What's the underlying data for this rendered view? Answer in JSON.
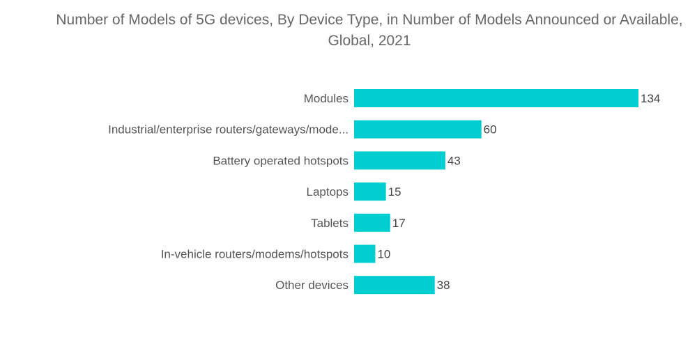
{
  "chart_data": {
    "type": "bar",
    "orientation": "horizontal",
    "title": "Number of Models of 5G devices, By Device Type, in Number of Models Announced or Available, Global, 2021",
    "categories": [
      "Modules",
      "Industrial/enterprise routers/gateways/mode...",
      "Battery operated hotspots",
      "Laptops",
      "Tablets",
      "In-vehicle routers/modems/hotspots",
      "Other devices"
    ],
    "values": [
      134,
      60,
      43,
      15,
      17,
      10,
      38
    ],
    "xlabel": "",
    "ylabel": "",
    "xlim": [
      0,
      134
    ],
    "grid": false,
    "data_labels": true,
    "colors": {
      "bar": "#00CED1"
    }
  }
}
